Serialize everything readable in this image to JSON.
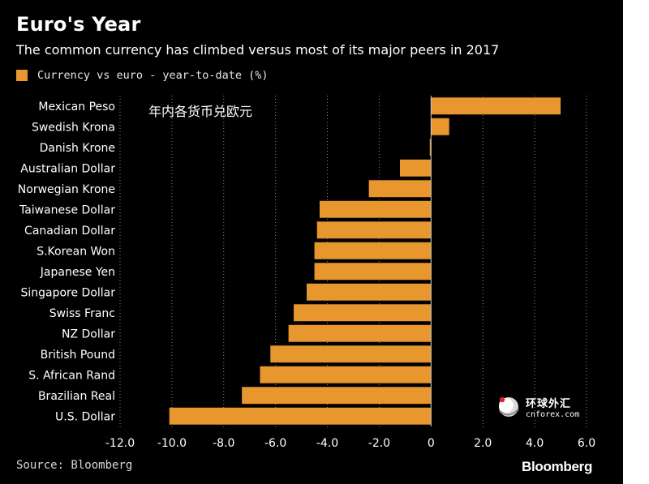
{
  "header": {
    "title": "Euro's Year",
    "subtitle": "The common currency has climbed versus most of its major peers in 2017"
  },
  "legend": {
    "label": "Currency vs euro - year-to-date (%)"
  },
  "overlay": {
    "chinese_caption": "年内各货币兑欧元"
  },
  "watermark": {
    "name": "环球外汇",
    "domain": "cnforex.com"
  },
  "footer": {
    "source": "Source: Bloomberg",
    "brand": "Bloomberg"
  },
  "colors": {
    "background": "#000000",
    "bar": "#e8962e",
    "text": "#ffffff",
    "grid": "#8a8a8a"
  },
  "chart_data": {
    "type": "bar",
    "orientation": "horizontal",
    "title": "Euro's Year",
    "subtitle": "The common currency has climbed versus most of its major peers in 2017",
    "categories": [
      "Mexican Peso",
      "Swedish Krona",
      "Danish Krone",
      "Australian Dollar",
      "Norwegian Krone",
      "Taiwanese Dollar",
      "Canadian Dollar",
      "S.Korean Won",
      "Japanese Yen",
      "Singapore Dollar",
      "Swiss Franc",
      "NZ Dollar",
      "British Pound",
      "S. African Rand",
      "Brazilian Real",
      "U.S. Dollar"
    ],
    "series": [
      {
        "name": "Currency vs euro - year-to-date (%)",
        "values": [
          5.0,
          0.7,
          -0.05,
          -1.2,
          -2.4,
          -4.3,
          -4.4,
          -4.5,
          -4.5,
          -4.8,
          -5.3,
          -5.5,
          -6.2,
          -6.6,
          -7.3,
          -10.1
        ]
      }
    ],
    "xlim": [
      -12.0,
      6.0
    ],
    "xticks": [
      -12.0,
      -10.0,
      -8.0,
      -6.0,
      -4.0,
      -2.0,
      0,
      2.0,
      4.0,
      6.0
    ],
    "xtick_labels": [
      "-12.0",
      "-10.0",
      "-8.0",
      "-6.0",
      "-4.0",
      "-2.0",
      "0",
      "2.0",
      "4.0",
      "6.0"
    ],
    "xlabel": "",
    "ylabel": "",
    "grid": "vertical dotted",
    "legend_position": "top-left"
  }
}
